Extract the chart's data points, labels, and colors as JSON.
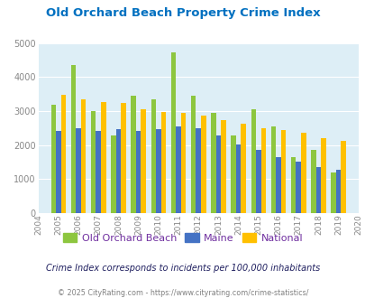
{
  "title": "Old Orchard Beach Property Crime Index",
  "years": [
    "2004",
    "2005",
    "2006",
    "2007",
    "2008",
    "2009",
    "2010",
    "2011",
    "2012",
    "2013",
    "2014",
    "2015",
    "2016",
    "2017",
    "2018",
    "2019",
    "2020"
  ],
  "oob": [
    0,
    3190,
    4350,
    3000,
    2290,
    3450,
    3350,
    4720,
    3450,
    2950,
    2290,
    3050,
    2550,
    1660,
    1850,
    1200,
    0
  ],
  "maine": [
    0,
    2430,
    2510,
    2420,
    2460,
    2430,
    2470,
    2540,
    2510,
    2280,
    2010,
    1870,
    1640,
    1510,
    1360,
    1270,
    0
  ],
  "national": [
    0,
    3470,
    3360,
    3260,
    3230,
    3060,
    2970,
    2950,
    2880,
    2740,
    2620,
    2490,
    2450,
    2360,
    2210,
    2130,
    0
  ],
  "oob_color": "#8dc63f",
  "maine_color": "#4472c4",
  "national_color": "#ffc000",
  "bg_color": "#ddeef6",
  "title_color": "#0070c0",
  "ylim": [
    0,
    5000
  ],
  "yticks": [
    0,
    1000,
    2000,
    3000,
    4000,
    5000
  ],
  "subtitle": "Crime Index corresponds to incidents per 100,000 inhabitants",
  "copyright": "© 2025 CityRating.com - https://www.cityrating.com/crime-statistics/",
  "legend_labels": [
    "Old Orchard Beach",
    "Maine",
    "National"
  ],
  "legend_text_color": "#7030a0",
  "subtitle_color": "#1f1f5f",
  "copyright_color": "#808080"
}
